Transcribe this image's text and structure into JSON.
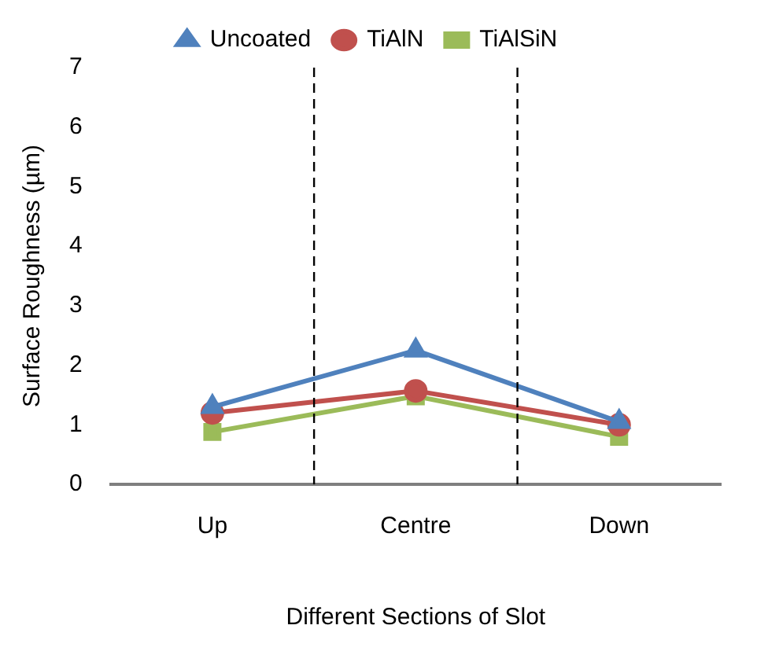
{
  "chart_data": {
    "type": "line",
    "xlabel": "Different Sections of Slot",
    "ylabel": "Surface Roughness (µm)",
    "categories": [
      "Up",
      "Centre",
      "Down"
    ],
    "series": [
      {
        "name": "Uncoated",
        "color": "#4f81bd",
        "marker": "triangle",
        "values": [
          1.3,
          2.25,
          1.05
        ]
      },
      {
        "name": "TiAlN",
        "color": "#c0504d",
        "marker": "circle",
        "values": [
          1.2,
          1.57,
          1.0
        ]
      },
      {
        "name": "TiAlSiN",
        "color": "#9bbb59",
        "marker": "square",
        "values": [
          0.88,
          1.48,
          0.8
        ]
      }
    ],
    "ylim": [
      0,
      7
    ],
    "yticks": [
      0,
      1,
      2,
      3,
      4,
      5,
      6,
      7
    ],
    "grid": false,
    "legend": "top",
    "line_style": "solid"
  }
}
